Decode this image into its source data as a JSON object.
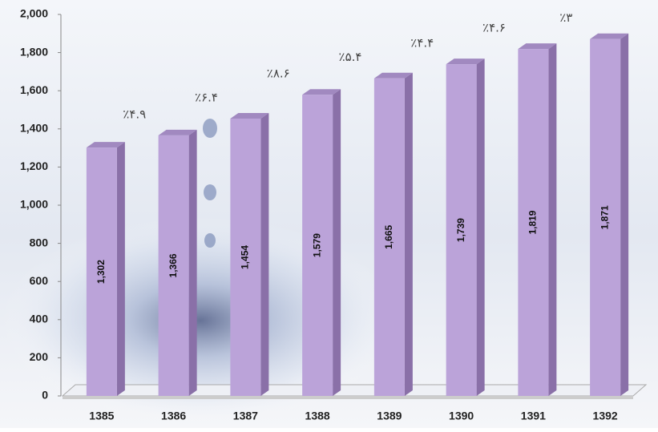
{
  "chart_data": {
    "type": "bar",
    "categories": [
      "1385",
      "1386",
      "1387",
      "1388",
      "1389",
      "1390",
      "1391",
      "1392"
    ],
    "values": [
      1302,
      1366,
      1454,
      1579,
      1665,
      1739,
      1819,
      1871
    ],
    "value_labels": [
      "1,302",
      "1,366",
      "1,454",
      "1,579",
      "1,665",
      "1,739",
      "1,819",
      "1,871"
    ],
    "annotations": [
      "٪۴.۹",
      "٪۶.۴",
      "٪۸.۶",
      "٪۵.۴",
      "٪۴.۴",
      "٪۴.۶",
      "٪۳"
    ],
    "color": "#bba3d9",
    "ylim": [
      0,
      2000
    ],
    "yticks": [
      0,
      200,
      400,
      600,
      800,
      {
        "value": 1000,
        "label": "1,000"
      },
      {
        "value": 1200,
        "label": "1,200"
      },
      {
        "value": 1400,
        "label": "1,400"
      },
      {
        "value": 1600,
        "label": "1,600"
      },
      {
        "value": 1800,
        "label": "1,800"
      },
      {
        "value": 2000,
        "label": "2,000"
      }
    ]
  }
}
